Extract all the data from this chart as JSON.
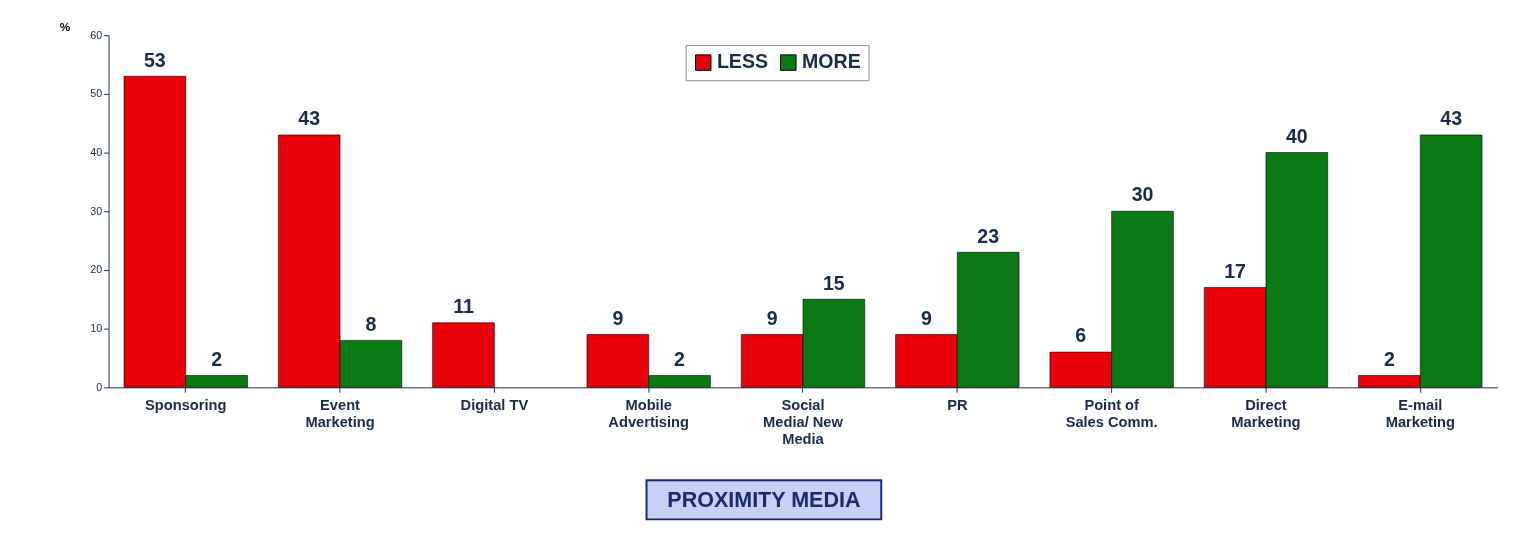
{
  "chart_data": {
    "type": "bar",
    "ylabel": "%",
    "categories": [
      "Sponsoring",
      "Event Marketing",
      "Digital TV",
      "Mobile Advertising",
      "Social Media/ New Media",
      "PR",
      "Point of Sales Comm.",
      "Direct Marketing",
      "E-mail Marketing"
    ],
    "series": [
      {
        "name": "LESS",
        "color": "#e8000b",
        "values": [
          53,
          43,
          11,
          9,
          9,
          9,
          6,
          17,
          2
        ]
      },
      {
        "name": "MORE",
        "color": "#0a7a14",
        "values": [
          2,
          8,
          null,
          2,
          15,
          23,
          30,
          40,
          43
        ]
      }
    ],
    "ylim": [
      0,
      60
    ],
    "yticks": [
      0,
      10,
      20,
      30,
      40,
      50,
      60
    ],
    "data_labels": true,
    "legend": "top",
    "grid": false,
    "annotations": [
      "PROXIMITY MEDIA"
    ]
  }
}
